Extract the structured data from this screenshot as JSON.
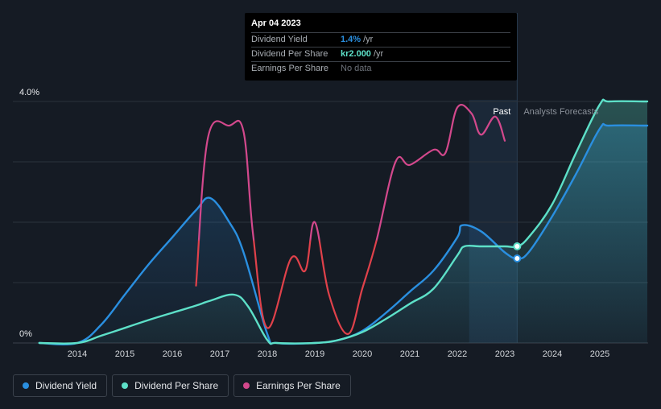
{
  "chart_data": {
    "type": "line",
    "title": "",
    "xlabel": "",
    "ylabel": "",
    "x_ticks": [
      "2014",
      "2015",
      "2016",
      "2017",
      "2018",
      "2019",
      "2020",
      "2021",
      "2022",
      "2023",
      "2024",
      "2025"
    ],
    "xlim": [
      2013.2,
      2026.0
    ],
    "y_ticks": [
      {
        "value": 4.0,
        "label": "4.0%"
      },
      {
        "value": 0,
        "label": "0%"
      }
    ],
    "ylim": [
      0,
      4.0
    ],
    "gridlines": [
      0,
      1,
      2,
      3,
      4
    ],
    "regions": {
      "past": {
        "label": "Past",
        "x0": 2022.25,
        "x1": 2023.26
      },
      "forecast": {
        "label": "Analysts Forecasts",
        "x0": 2023.26
      }
    },
    "series": [
      {
        "name": "Dividend Yield",
        "color": "#2a8fe0",
        "area": true,
        "points": [
          [
            2013.2,
            0
          ],
          [
            2014.0,
            0
          ],
          [
            2014.5,
            0.3
          ],
          [
            2015.0,
            0.8
          ],
          [
            2015.5,
            1.3
          ],
          [
            2016.0,
            1.75
          ],
          [
            2016.5,
            2.2
          ],
          [
            2016.8,
            2.4
          ],
          [
            2017.2,
            2.0
          ],
          [
            2017.5,
            1.5
          ],
          [
            2018.0,
            0.15
          ],
          [
            2018.2,
            0
          ],
          [
            2019.0,
            0
          ],
          [
            2019.5,
            0.05
          ],
          [
            2020.0,
            0.2
          ],
          [
            2020.5,
            0.5
          ],
          [
            2021.0,
            0.85
          ],
          [
            2021.5,
            1.2
          ],
          [
            2022.0,
            1.75
          ],
          [
            2022.1,
            1.95
          ],
          [
            2022.5,
            1.85
          ],
          [
            2023.0,
            1.5
          ],
          [
            2023.26,
            1.4
          ],
          [
            2023.5,
            1.5
          ],
          [
            2024.0,
            2.1
          ],
          [
            2024.5,
            2.8
          ],
          [
            2025.0,
            3.55
          ],
          [
            2025.2,
            3.6
          ],
          [
            2026.0,
            3.6
          ]
        ]
      },
      {
        "name": "Dividend Per Share",
        "color": "#5de0c8",
        "area": true,
        "points": [
          [
            2013.2,
            0
          ],
          [
            2014.0,
            0
          ],
          [
            2014.5,
            0.12
          ],
          [
            2015.0,
            0.25
          ],
          [
            2015.5,
            0.38
          ],
          [
            2016.0,
            0.5
          ],
          [
            2016.5,
            0.62
          ],
          [
            2016.8,
            0.7
          ],
          [
            2017.3,
            0.8
          ],
          [
            2017.6,
            0.6
          ],
          [
            2018.0,
            0.05
          ],
          [
            2018.2,
            0
          ],
          [
            2019.0,
            0
          ],
          [
            2019.5,
            0.05
          ],
          [
            2020.0,
            0.18
          ],
          [
            2020.5,
            0.4
          ],
          [
            2021.0,
            0.65
          ],
          [
            2021.5,
            0.9
          ],
          [
            2022.0,
            1.45
          ],
          [
            2022.15,
            1.6
          ],
          [
            2022.5,
            1.6
          ],
          [
            2023.0,
            1.6
          ],
          [
            2023.26,
            1.6
          ],
          [
            2023.5,
            1.75
          ],
          [
            2024.0,
            2.3
          ],
          [
            2024.5,
            3.15
          ],
          [
            2025.0,
            3.95
          ],
          [
            2025.2,
            4.0
          ],
          [
            2026.0,
            4.0
          ]
        ]
      },
      {
        "name": "Earnings Per Share",
        "color": "#d3488c",
        "area": false,
        "points": [
          [
            2016.5,
            0.95
          ],
          [
            2016.75,
            3.4
          ],
          [
            2017.2,
            3.6
          ],
          [
            2017.5,
            3.5
          ],
          [
            2017.7,
            1.8
          ],
          [
            2018.0,
            0.25
          ],
          [
            2018.5,
            1.4
          ],
          [
            2018.8,
            1.2
          ],
          [
            2019.0,
            2.0
          ],
          [
            2019.3,
            0.8
          ],
          [
            2019.7,
            0.15
          ],
          [
            2020.0,
            0.9
          ],
          [
            2020.3,
            1.7
          ],
          [
            2020.7,
            3.0
          ],
          [
            2021.0,
            2.95
          ],
          [
            2021.5,
            3.2
          ],
          [
            2021.75,
            3.15
          ],
          [
            2022.0,
            3.9
          ],
          [
            2022.3,
            3.8
          ],
          [
            2022.5,
            3.45
          ],
          [
            2022.8,
            3.75
          ],
          [
            2023.0,
            3.35
          ]
        ]
      }
    ],
    "markers": [
      {
        "series": "Dividend Yield",
        "x": 2023.26,
        "y": 1.4
      },
      {
        "series": "Dividend Per Share",
        "x": 2023.26,
        "y": 1.6
      }
    ],
    "legend_position": "bottom-left"
  },
  "tooltip": {
    "date": "Apr 04 2023",
    "rows": [
      {
        "name": "Dividend Yield",
        "value": "1.4%",
        "unit": "/yr",
        "color": "#2a8fe0"
      },
      {
        "name": "Dividend Per Share",
        "value": "kr2.000",
        "unit": "/yr",
        "color": "#5de0c8"
      },
      {
        "name": "Earnings Per Share",
        "value": "No data",
        "unit": "",
        "color": "#6d727a"
      }
    ]
  },
  "legend": [
    {
      "label": "Dividend Yield",
      "color": "#2a8fe0"
    },
    {
      "label": "Dividend Per Share",
      "color": "#5de0c8"
    },
    {
      "label": "Earnings Per Share",
      "color": "#d3488c"
    }
  ],
  "colors": {
    "background": "#151b24",
    "grid": "#2c333d",
    "past_region": "#1c2a3b",
    "forecast_text": "#8a9099"
  }
}
